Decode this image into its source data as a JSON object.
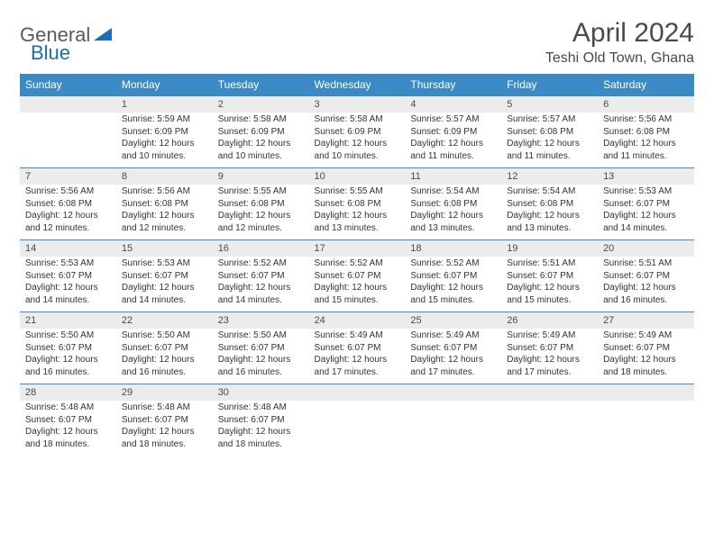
{
  "logo": {
    "general": "General",
    "blue": "Blue"
  },
  "title": "April 2024",
  "location": "Teshi Old Town, Ghana",
  "colors": {
    "header_bg": "#3b8ac4",
    "header_text": "#ffffff",
    "daynum_bg": "#ececec",
    "border": "#3b8ac4",
    "logo_gray": "#5a5a5a",
    "logo_blue": "#1b6db5",
    "text": "#333333"
  },
  "weekdays": [
    "Sunday",
    "Monday",
    "Tuesday",
    "Wednesday",
    "Thursday",
    "Friday",
    "Saturday"
  ],
  "weeks": [
    {
      "nums": [
        "",
        "1",
        "2",
        "3",
        "4",
        "5",
        "6"
      ],
      "cells": [
        {
          "empty": true
        },
        {
          "sunrise": "Sunrise: 5:59 AM",
          "sunset": "Sunset: 6:09 PM",
          "dl1": "Daylight: 12 hours",
          "dl2": "and 10 minutes."
        },
        {
          "sunrise": "Sunrise: 5:58 AM",
          "sunset": "Sunset: 6:09 PM",
          "dl1": "Daylight: 12 hours",
          "dl2": "and 10 minutes."
        },
        {
          "sunrise": "Sunrise: 5:58 AM",
          "sunset": "Sunset: 6:09 PM",
          "dl1": "Daylight: 12 hours",
          "dl2": "and 10 minutes."
        },
        {
          "sunrise": "Sunrise: 5:57 AM",
          "sunset": "Sunset: 6:09 PM",
          "dl1": "Daylight: 12 hours",
          "dl2": "and 11 minutes."
        },
        {
          "sunrise": "Sunrise: 5:57 AM",
          "sunset": "Sunset: 6:08 PM",
          "dl1": "Daylight: 12 hours",
          "dl2": "and 11 minutes."
        },
        {
          "sunrise": "Sunrise: 5:56 AM",
          "sunset": "Sunset: 6:08 PM",
          "dl1": "Daylight: 12 hours",
          "dl2": "and 11 minutes."
        }
      ]
    },
    {
      "nums": [
        "7",
        "8",
        "9",
        "10",
        "11",
        "12",
        "13"
      ],
      "cells": [
        {
          "sunrise": "Sunrise: 5:56 AM",
          "sunset": "Sunset: 6:08 PM",
          "dl1": "Daylight: 12 hours",
          "dl2": "and 12 minutes."
        },
        {
          "sunrise": "Sunrise: 5:56 AM",
          "sunset": "Sunset: 6:08 PM",
          "dl1": "Daylight: 12 hours",
          "dl2": "and 12 minutes."
        },
        {
          "sunrise": "Sunrise: 5:55 AM",
          "sunset": "Sunset: 6:08 PM",
          "dl1": "Daylight: 12 hours",
          "dl2": "and 12 minutes."
        },
        {
          "sunrise": "Sunrise: 5:55 AM",
          "sunset": "Sunset: 6:08 PM",
          "dl1": "Daylight: 12 hours",
          "dl2": "and 13 minutes."
        },
        {
          "sunrise": "Sunrise: 5:54 AM",
          "sunset": "Sunset: 6:08 PM",
          "dl1": "Daylight: 12 hours",
          "dl2": "and 13 minutes."
        },
        {
          "sunrise": "Sunrise: 5:54 AM",
          "sunset": "Sunset: 6:08 PM",
          "dl1": "Daylight: 12 hours",
          "dl2": "and 13 minutes."
        },
        {
          "sunrise": "Sunrise: 5:53 AM",
          "sunset": "Sunset: 6:07 PM",
          "dl1": "Daylight: 12 hours",
          "dl2": "and 14 minutes."
        }
      ]
    },
    {
      "nums": [
        "14",
        "15",
        "16",
        "17",
        "18",
        "19",
        "20"
      ],
      "cells": [
        {
          "sunrise": "Sunrise: 5:53 AM",
          "sunset": "Sunset: 6:07 PM",
          "dl1": "Daylight: 12 hours",
          "dl2": "and 14 minutes."
        },
        {
          "sunrise": "Sunrise: 5:53 AM",
          "sunset": "Sunset: 6:07 PM",
          "dl1": "Daylight: 12 hours",
          "dl2": "and 14 minutes."
        },
        {
          "sunrise": "Sunrise: 5:52 AM",
          "sunset": "Sunset: 6:07 PM",
          "dl1": "Daylight: 12 hours",
          "dl2": "and 14 minutes."
        },
        {
          "sunrise": "Sunrise: 5:52 AM",
          "sunset": "Sunset: 6:07 PM",
          "dl1": "Daylight: 12 hours",
          "dl2": "and 15 minutes."
        },
        {
          "sunrise": "Sunrise: 5:52 AM",
          "sunset": "Sunset: 6:07 PM",
          "dl1": "Daylight: 12 hours",
          "dl2": "and 15 minutes."
        },
        {
          "sunrise": "Sunrise: 5:51 AM",
          "sunset": "Sunset: 6:07 PM",
          "dl1": "Daylight: 12 hours",
          "dl2": "and 15 minutes."
        },
        {
          "sunrise": "Sunrise: 5:51 AM",
          "sunset": "Sunset: 6:07 PM",
          "dl1": "Daylight: 12 hours",
          "dl2": "and 16 minutes."
        }
      ]
    },
    {
      "nums": [
        "21",
        "22",
        "23",
        "24",
        "25",
        "26",
        "27"
      ],
      "cells": [
        {
          "sunrise": "Sunrise: 5:50 AM",
          "sunset": "Sunset: 6:07 PM",
          "dl1": "Daylight: 12 hours",
          "dl2": "and 16 minutes."
        },
        {
          "sunrise": "Sunrise: 5:50 AM",
          "sunset": "Sunset: 6:07 PM",
          "dl1": "Daylight: 12 hours",
          "dl2": "and 16 minutes."
        },
        {
          "sunrise": "Sunrise: 5:50 AM",
          "sunset": "Sunset: 6:07 PM",
          "dl1": "Daylight: 12 hours",
          "dl2": "and 16 minutes."
        },
        {
          "sunrise": "Sunrise: 5:49 AM",
          "sunset": "Sunset: 6:07 PM",
          "dl1": "Daylight: 12 hours",
          "dl2": "and 17 minutes."
        },
        {
          "sunrise": "Sunrise: 5:49 AM",
          "sunset": "Sunset: 6:07 PM",
          "dl1": "Daylight: 12 hours",
          "dl2": "and 17 minutes."
        },
        {
          "sunrise": "Sunrise: 5:49 AM",
          "sunset": "Sunset: 6:07 PM",
          "dl1": "Daylight: 12 hours",
          "dl2": "and 17 minutes."
        },
        {
          "sunrise": "Sunrise: 5:49 AM",
          "sunset": "Sunset: 6:07 PM",
          "dl1": "Daylight: 12 hours",
          "dl2": "and 18 minutes."
        }
      ]
    },
    {
      "nums": [
        "28",
        "29",
        "30",
        "",
        "",
        "",
        ""
      ],
      "cells": [
        {
          "sunrise": "Sunrise: 5:48 AM",
          "sunset": "Sunset: 6:07 PM",
          "dl1": "Daylight: 12 hours",
          "dl2": "and 18 minutes."
        },
        {
          "sunrise": "Sunrise: 5:48 AM",
          "sunset": "Sunset: 6:07 PM",
          "dl1": "Daylight: 12 hours",
          "dl2": "and 18 minutes."
        },
        {
          "sunrise": "Sunrise: 5:48 AM",
          "sunset": "Sunset: 6:07 PM",
          "dl1": "Daylight: 12 hours",
          "dl2": "and 18 minutes."
        },
        {
          "empty": true
        },
        {
          "empty": true
        },
        {
          "empty": true
        },
        {
          "empty": true
        }
      ]
    }
  ]
}
